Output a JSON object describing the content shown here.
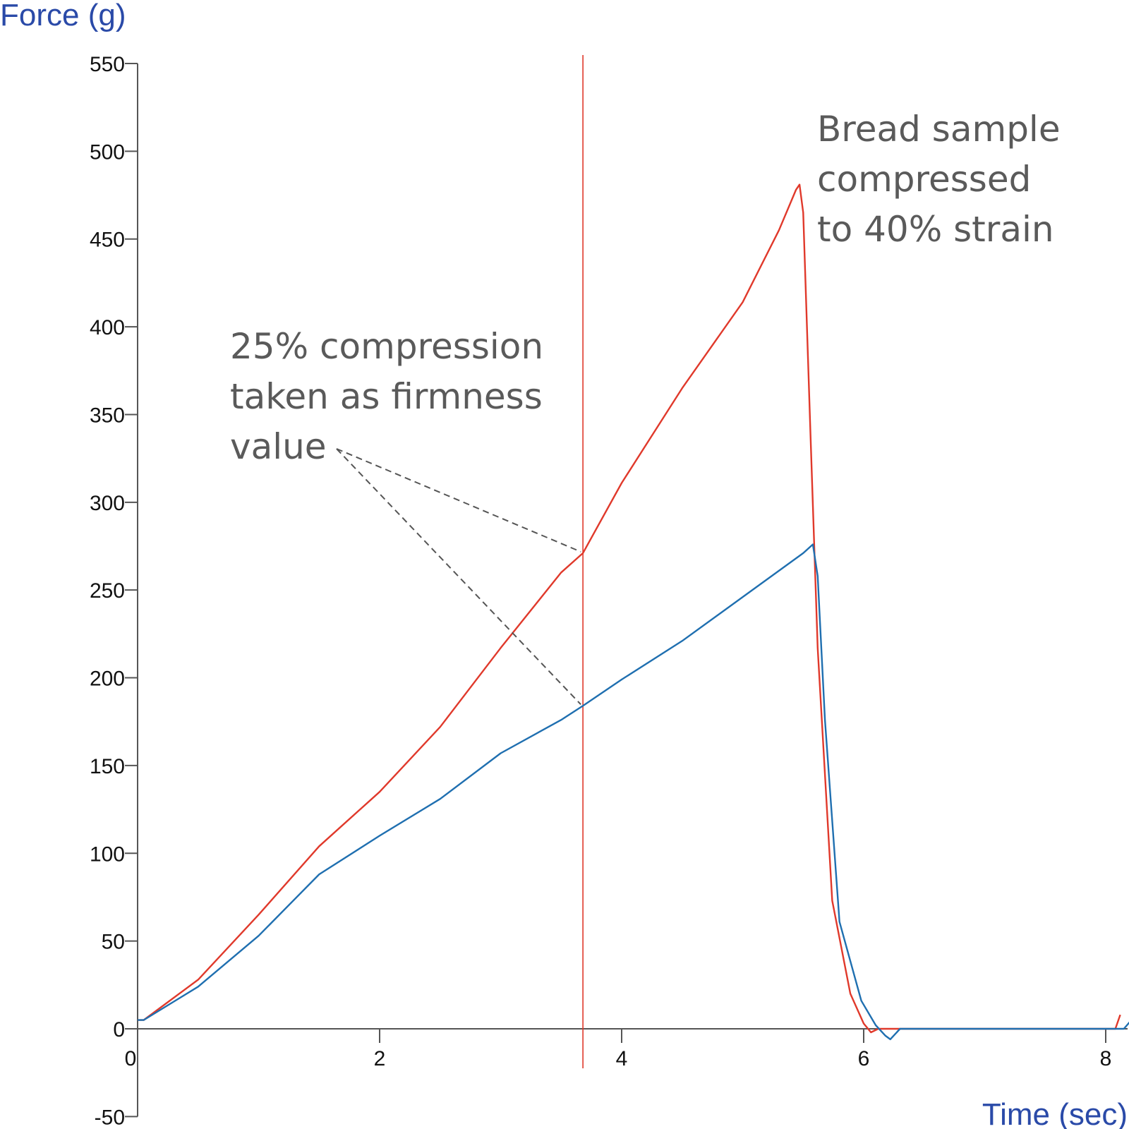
{
  "chart_data": {
    "type": "line",
    "title": "",
    "xlabel": "Time (sec)",
    "ylabel": "Force (g)",
    "xlim": [
      0,
      8.2
    ],
    "ylim": [
      -50,
      550
    ],
    "xticks": [
      0,
      2,
      4,
      6,
      8
    ],
    "yticks": [
      -50,
      0,
      50,
      100,
      150,
      200,
      250,
      300,
      350,
      400,
      450,
      500,
      550
    ],
    "grid": false,
    "colors": {
      "red": "#e0392b",
      "blue": "#1f6fb0",
      "axis": "#555555",
      "dash": "#555555"
    },
    "marker_line": {
      "x": 3.68,
      "color": "#e0392b"
    },
    "series": [
      {
        "name": "red",
        "color": "#e0392b",
        "x": [
          0,
          0.05,
          0.5,
          1,
          1.5,
          2,
          2.5,
          3,
          3.5,
          3.68,
          4,
          4.5,
          5,
          5.3,
          5.44,
          5.47,
          5.5,
          5.56,
          5.62,
          5.74,
          5.89,
          6.0,
          6.06,
          6.12,
          6.3,
          8.08,
          8.12
        ],
        "y": [
          5,
          5,
          28,
          65,
          104,
          135,
          172,
          217,
          260,
          271,
          311,
          365,
          414,
          455,
          478,
          481,
          465,
          340,
          217,
          73,
          20,
          3,
          -2,
          0,
          0,
          0,
          8
        ]
      },
      {
        "name": "blue",
        "color": "#1f6fb0",
        "x": [
          0,
          0.05,
          0.5,
          1,
          1.5,
          2,
          2.5,
          3,
          3.5,
          3.68,
          4,
          4.5,
          5,
          5.5,
          5.58,
          5.62,
          5.68,
          5.8,
          5.98,
          6.1,
          6.18,
          6.22,
          6.3,
          8.15,
          8.2
        ],
        "y": [
          5,
          5,
          24,
          53,
          88,
          110,
          131,
          157,
          176,
          184,
          199,
          221,
          246,
          271,
          276,
          258,
          176,
          61,
          16,
          2,
          -4,
          -6,
          0,
          0,
          4
        ]
      }
    ],
    "annotations": [
      {
        "id": "bread",
        "lines": [
          "Bread sample",
          "compressed",
          "to 40% strain"
        ]
      },
      {
        "id": "firmness",
        "lines": [
          "25% compression",
          "taken as firmness",
          "value"
        ],
        "points_to": [
          {
            "x": 3.68,
            "y": 271
          },
          {
            "x": 3.68,
            "y": 184
          }
        ]
      }
    ]
  }
}
